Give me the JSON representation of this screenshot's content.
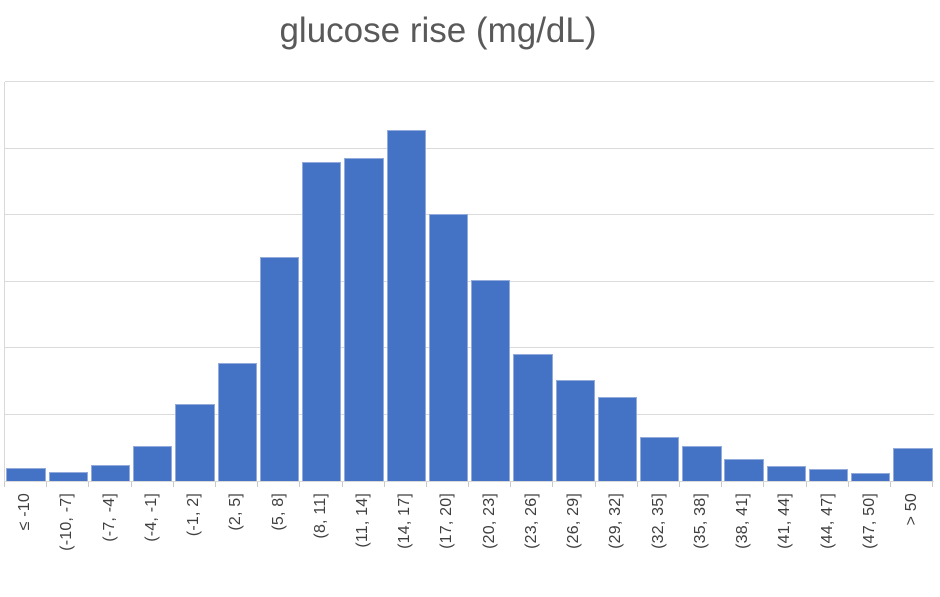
{
  "colors": {
    "bar_fill": "#4472C4",
    "bar_border": "#92ABDB",
    "gridline": "#DBDBDB",
    "axis_line": "#D9D9D9",
    "tick_mark": "#C9C9C9",
    "title_text": "#595959",
    "label_text": "#3F3F3F",
    "background": "#FFFFFF"
  },
  "chart_data": {
    "type": "bar",
    "subtype": "histogram",
    "title": "glucose rise (mg/dL)",
    "xlabel": "",
    "ylabel": "",
    "legend": "none",
    "y_axis_tick_labels": "none visible",
    "value_unit": "gridline divisions (y-axis unlabeled; estimated from gridlines)",
    "ylim": [
      0,
      6
    ],
    "gridlines": {
      "horizontal": true,
      "divisions": 6
    },
    "categories": [
      "≤ -10",
      "(-10, -7]",
      "(-7, -4]",
      "(-4, -1]",
      "(-1, 2]",
      "(2, 5]",
      "(5, 8]",
      "(8, 11]",
      "(11, 14]",
      "(14, 17]",
      "(17, 20]",
      "(20, 23]",
      "(23, 26]",
      "(26, 29]",
      "(29, 32]",
      "(32, 35]",
      "(35, 38]",
      "(38, 41]",
      "(41, 44]",
      "(44, 47]",
      "(47, 50]",
      "> 50"
    ],
    "values": [
      0.19,
      0.14,
      0.24,
      0.53,
      1.16,
      1.78,
      3.37,
      4.79,
      4.85,
      5.28,
      4.01,
      3.02,
      1.91,
      1.52,
      1.27,
      0.66,
      0.53,
      0.33,
      0.22,
      0.18,
      0.12,
      0.5
    ]
  }
}
